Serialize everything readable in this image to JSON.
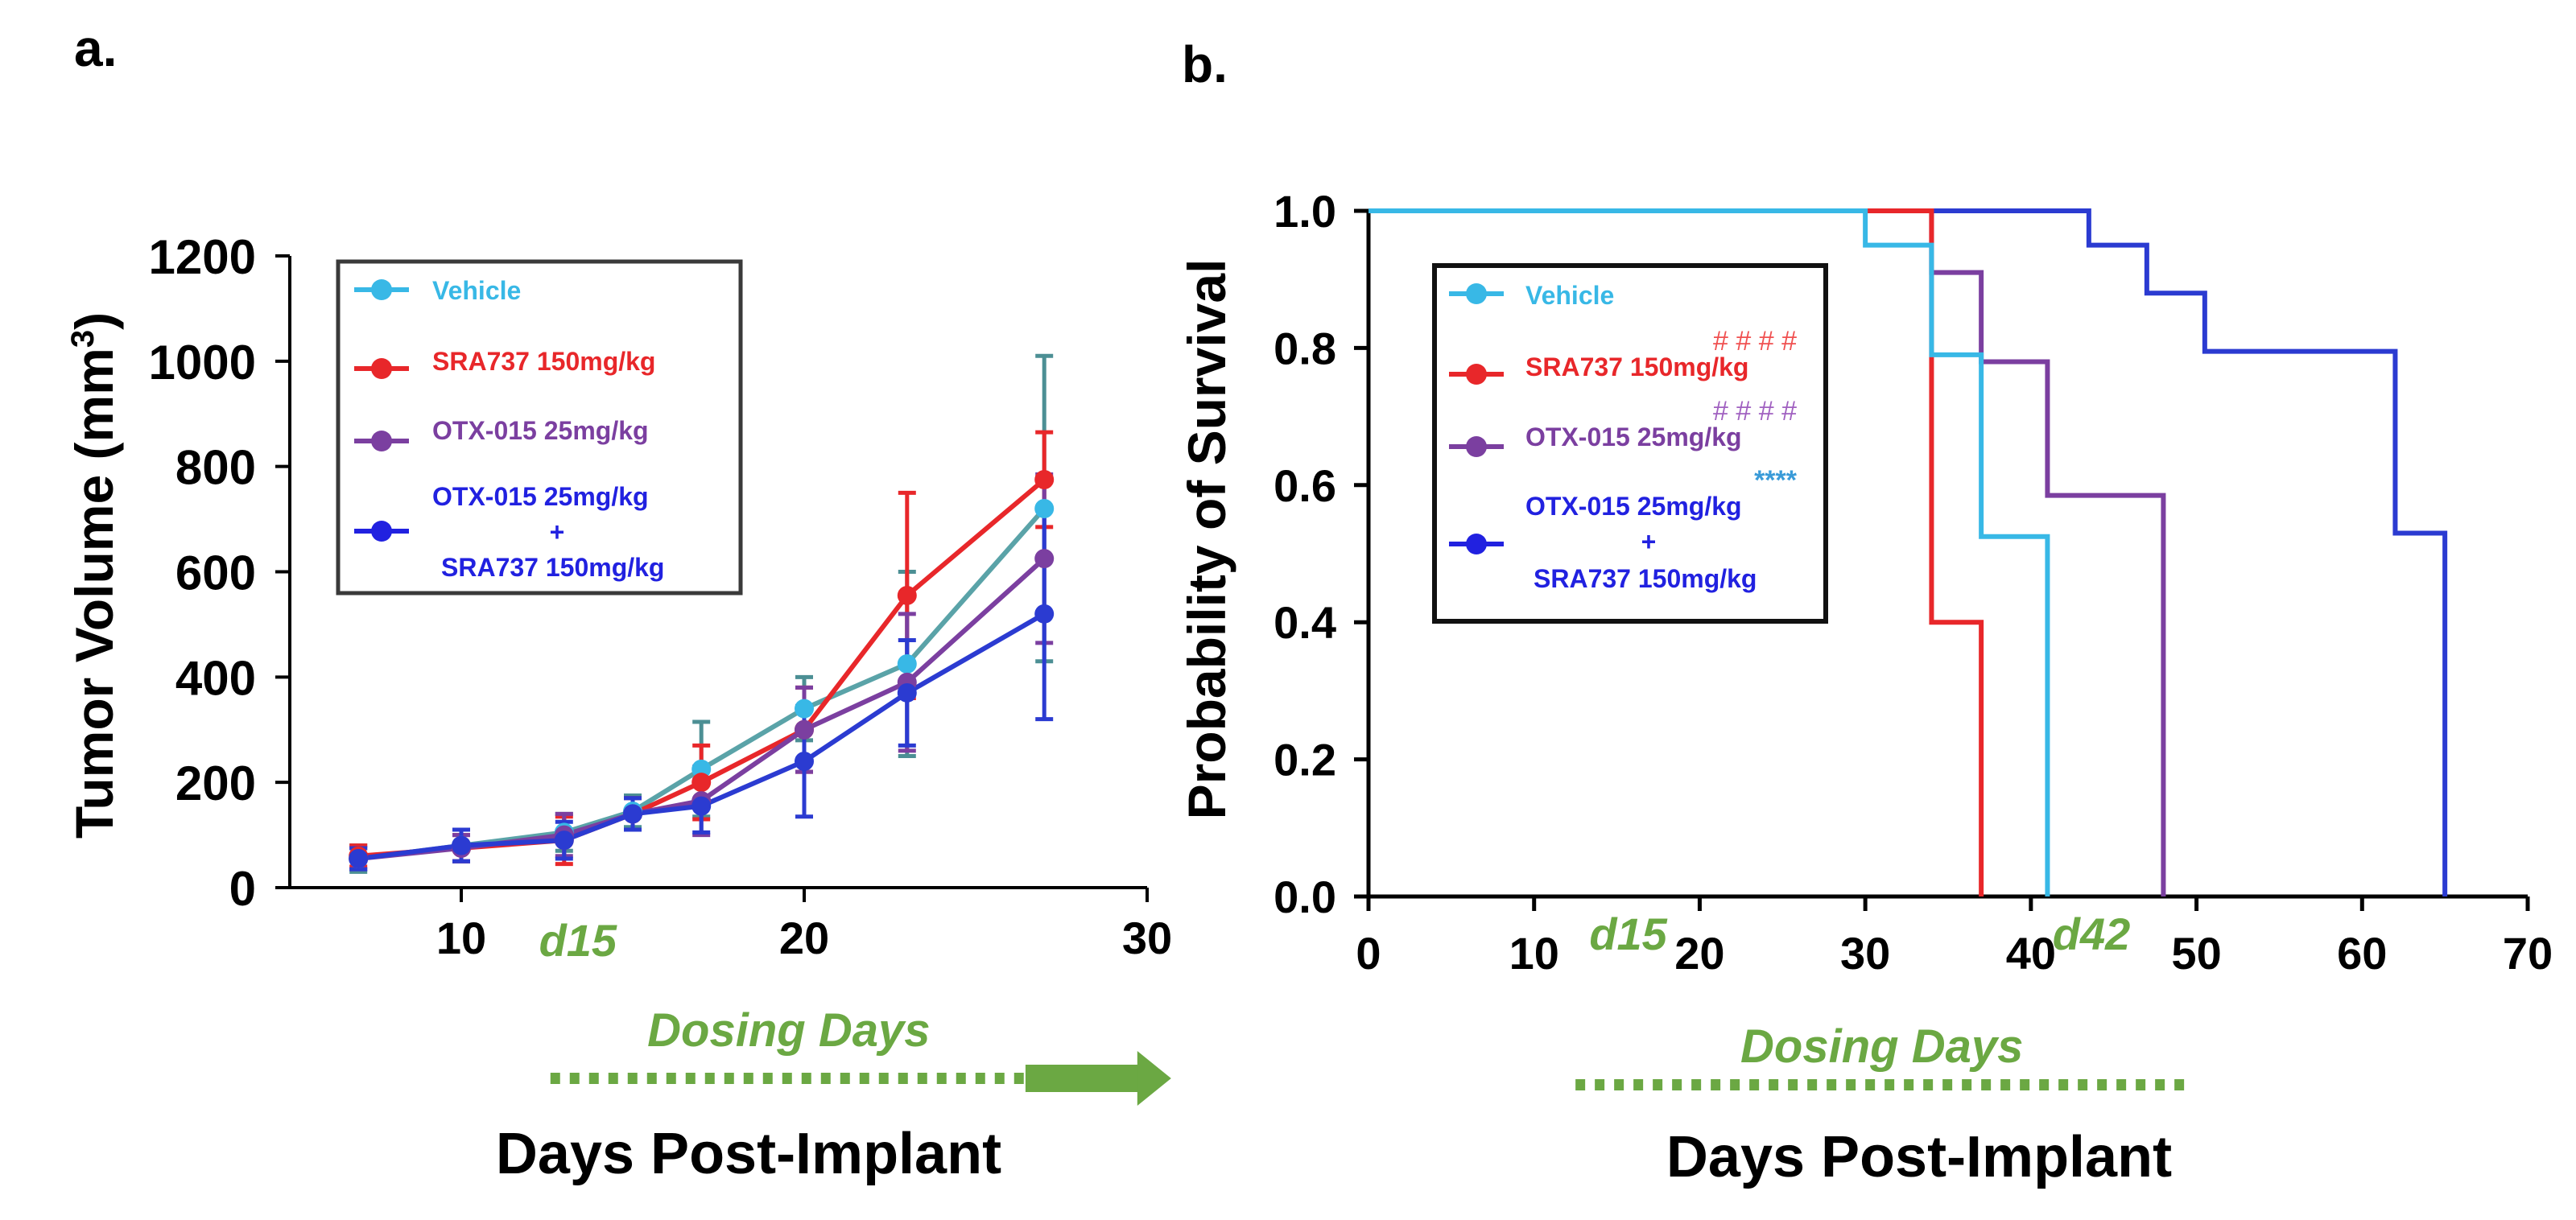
{
  "colors": {
    "vehicle": "#38B8E6",
    "sra737": "#E8272A",
    "otx015": "#7B3FA0",
    "combo": "#2B3BD1",
    "combo_legend": "#2121E0",
    "error_bar": "#4C8F94",
    "dosing": "#6BA843",
    "hash_red": "#F05050",
    "hash_purple": "#A060C0",
    "stars_blue": "#3A9BD8",
    "axis": "#000000"
  },
  "chart_data": [
    {
      "id": "a",
      "panel_label": "a.",
      "type": "line",
      "title": "",
      "xlabel": "Days Post-Implant",
      "ylabel": "Tumor Volume (mm",
      "ylabel_sup": "3",
      "ylabel_close": ")",
      "xlim": [
        5,
        30
      ],
      "ylim": [
        0,
        1200
      ],
      "xticks": [
        10,
        20,
        30
      ],
      "yticks": [
        0,
        200,
        400,
        600,
        800,
        1000,
        1200
      ],
      "x": [
        7,
        10,
        13,
        15,
        17,
        20,
        23,
        27
      ],
      "series": [
        {
          "key": "vehicle",
          "name": "Vehicle",
          "values": [
            55,
            80,
            105,
            145,
            225,
            340,
            425,
            720
          ],
          "errors": [
            25,
            30,
            35,
            30,
            90,
            60,
            175,
            290
          ]
        },
        {
          "key": "sra737",
          "name": "SRA737  150mg/kg",
          "values": [
            60,
            75,
            90,
            140,
            200,
            300,
            555,
            775
          ],
          "errors": [
            20,
            25,
            45,
            30,
            70,
            80,
            195,
            90
          ]
        },
        {
          "key": "otx015",
          "name": "OTX-015 25mg/kg",
          "values": [
            55,
            75,
            100,
            140,
            165,
            300,
            390,
            625
          ],
          "errors": [
            20,
            25,
            40,
            30,
            65,
            80,
            130,
            160
          ]
        },
        {
          "key": "combo",
          "name_line1": "OTX-015 25mg/kg",
          "name_line2": "+",
          "name_line3": "SRA737  150mg/kg",
          "values": [
            55,
            80,
            90,
            140,
            155,
            240,
            370,
            520
          ],
          "errors": [
            20,
            30,
            35,
            30,
            50,
            105,
            100,
            200
          ]
        }
      ],
      "annotations": {
        "d15_label": "d15",
        "d15_x": 13.4,
        "dosing_label": "Dosing  Days",
        "dosing_start": 12.6,
        "dosing_end": 26.5,
        "arrow_end": 30.7
      },
      "legend_position": "top-left"
    },
    {
      "id": "b",
      "panel_label": "b.",
      "type": "line",
      "title": "",
      "xlabel": "Days Post-Implant",
      "ylabel": "Probability of Survival",
      "xlim": [
        0,
        70
      ],
      "ylim": [
        0,
        1
      ],
      "xticks": [
        0,
        10,
        20,
        30,
        40,
        50,
        60,
        70
      ],
      "yticks": [
        0.0,
        0.2,
        0.4,
        0.6,
        0.8,
        1.0
      ],
      "ytick_labels": [
        "0.0",
        "0.2",
        "0.4",
        "0.6",
        "0.8",
        "1.0"
      ],
      "series": [
        {
          "key": "vehicle",
          "name": "Vehicle",
          "steps": [
            [
              0,
              1.0
            ],
            [
              30,
              0.95
            ],
            [
              34,
              0.79
            ],
            [
              37,
              0.525
            ],
            [
              41,
              0.525
            ],
            [
              41,
              0.0
            ]
          ]
        },
        {
          "key": "sra737",
          "name": "SRA737  150mg/kg",
          "significance": "# # # #",
          "steps": [
            [
              0,
              1.0
            ],
            [
              34,
              0.4
            ],
            [
              37,
              0.0
            ]
          ]
        },
        {
          "key": "otx015",
          "name": "OTX-015 25mg/kg",
          "significance": "# # # #",
          "steps": [
            [
              0,
              1.0
            ],
            [
              34,
              0.91
            ],
            [
              37,
              0.78
            ],
            [
              41,
              0.585
            ],
            [
              48,
              0.0
            ]
          ]
        },
        {
          "key": "combo",
          "name_line1": "OTX-015 25mg/kg",
          "name_line2": "+",
          "name_line3": "SRA737  150mg/kg",
          "significance": "****",
          "steps": [
            [
              0,
              1.0
            ],
            [
              43.5,
              0.95
            ],
            [
              47,
              0.88
            ],
            [
              50.5,
              0.795
            ],
            [
              62,
              0.53
            ],
            [
              65,
              0.0
            ]
          ]
        }
      ],
      "annotations": {
        "d15_label": "d15",
        "d15_x": 15,
        "d42_label": "d42",
        "d42_x": 42,
        "dosing_label": "Dosing  Days",
        "dosing_start": 12.5,
        "dosing_end": 49.5
      },
      "legend_position": "top-left"
    }
  ]
}
